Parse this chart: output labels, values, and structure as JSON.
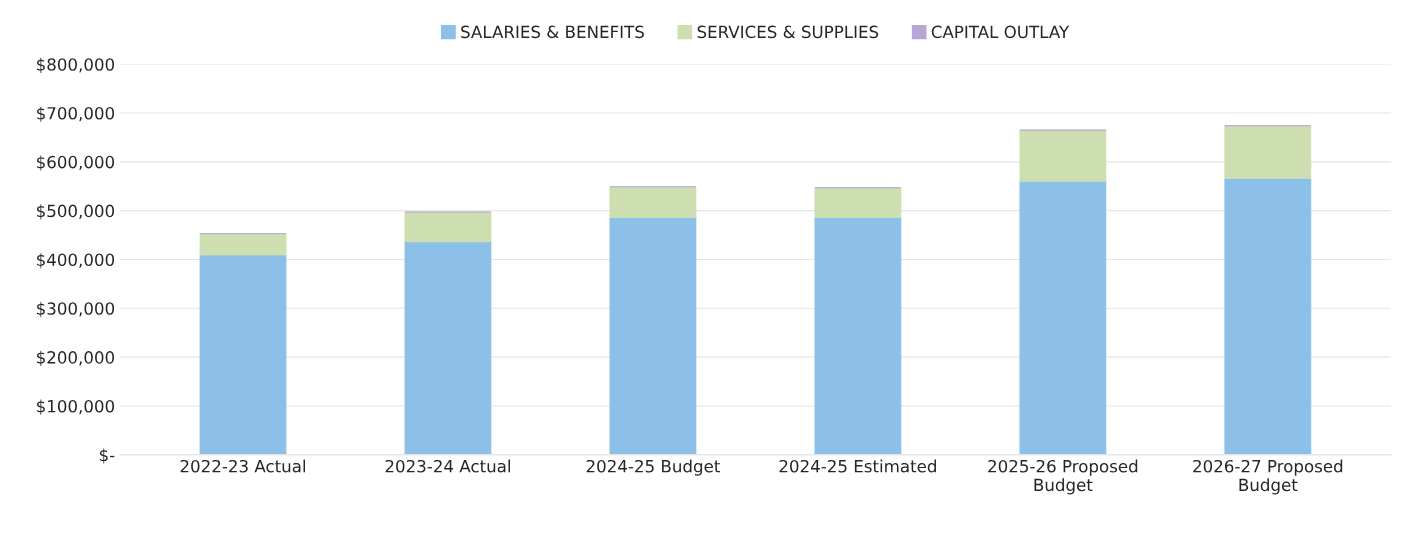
{
  "chart_data": {
    "type": "bar",
    "stacked": true,
    "categories": [
      "2022-23 Actual",
      "2023-24 Actual",
      "2024-25 Budget",
      "2024-25 Estimated",
      "2025-26 Proposed\nBudget",
      "2026-27 Proposed\nBudget"
    ],
    "series": [
      {
        "name": "SALARIES & BENEFITS",
        "color": "#8dc0e8",
        "values": [
          409000,
          436000,
          486000,
          486000,
          560000,
          566000
        ]
      },
      {
        "name": "SERVICES & SUPPLIES",
        "color": "#cddfb0",
        "values": [
          44000,
          61000,
          63000,
          61000,
          105000,
          108000
        ]
      },
      {
        "name": "CAPITAL OUTLAY",
        "color": "#b4a7d6",
        "values": [
          0,
          0,
          0,
          0,
          0,
          0
        ]
      }
    ],
    "ylim": [
      0,
      800000
    ],
    "yticks": [
      {
        "value": 0,
        "label": "$-"
      },
      {
        "value": 100000,
        "label": "$100,000"
      },
      {
        "value": 200000,
        "label": "$200,000"
      },
      {
        "value": 300000,
        "label": "$300,000"
      },
      {
        "value": 400000,
        "label": "$400,000"
      },
      {
        "value": 500000,
        "label": "$500,000"
      },
      {
        "value": 600000,
        "label": "$600,000"
      },
      {
        "value": 700000,
        "label": "$700,000"
      },
      {
        "value": 800000,
        "label": "$800,000"
      }
    ],
    "grid": "y",
    "legend": "top"
  }
}
